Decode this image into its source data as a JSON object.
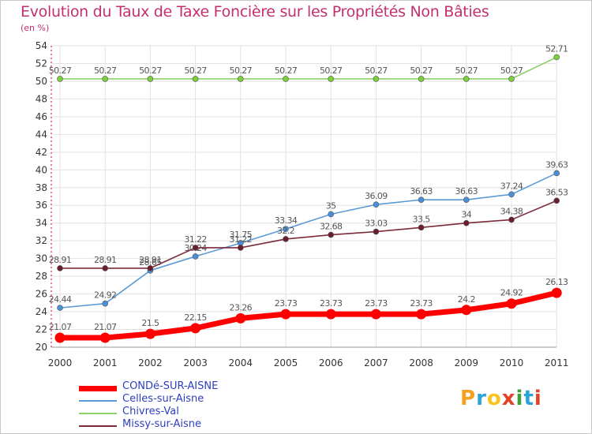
{
  "title": "Evolution du Taux de Taxe Foncière sur les Propriétés Non Bâties",
  "subtitle": "(en %)",
  "logo": "Proxiti",
  "logo_colors": [
    "#f4a020",
    "#2ba3d8",
    "#f7c31c",
    "#e3432b",
    "#3d9f3d",
    "#2ba3d8",
    "#e3432b"
  ],
  "chart_data": {
    "type": "line",
    "title": "Evolution du Taux de Taxe Foncière sur les Propriétés Non Bâties",
    "ylabel": "(en %)",
    "xlabel": "",
    "ylim": [
      20,
      54
    ],
    "yticks": [
      "20",
      "22",
      "24",
      "26",
      "28",
      "30",
      "32",
      "34",
      "36",
      "38",
      "40",
      "42",
      "44",
      "46",
      "48",
      "50",
      "52",
      "54"
    ],
    "categories": [
      "2000",
      "2001",
      "2002",
      "2003",
      "2004",
      "2005",
      "2006",
      "2007",
      "2008",
      "2009",
      "2010",
      "2011"
    ],
    "grid": true,
    "series": [
      {
        "name": "Chivres-Val",
        "color": "#8dd26a",
        "marker": "#7ad13a",
        "values": [
          50.27,
          50.27,
          50.27,
          50.27,
          50.27,
          50.27,
          50.27,
          50.27,
          50.27,
          50.27,
          50.27,
          52.71
        ],
        "labels": [
          "50.27",
          "50.27",
          "50.27",
          "50.27",
          "50.27",
          "50.27",
          "50.27",
          "50.27",
          "50.27",
          "50.27",
          "50.27",
          "52.71"
        ]
      },
      {
        "name": "Celles-sur-Aisne",
        "color": "#5b9bd5",
        "marker": "#4a90d9",
        "values": [
          24.44,
          24.92,
          28.65,
          30.24,
          31.75,
          33.34,
          35,
          36.09,
          36.63,
          36.63,
          37.24,
          39.63
        ],
        "labels": [
          "24.44",
          "24.92",
          "28.65",
          "30.24",
          "31.75",
          "33.34",
          "35",
          "36.09",
          "36.63",
          "36.63",
          "37.24",
          "39.63"
        ]
      },
      {
        "name": "Missy-sur-Aisne",
        "color": "#7b2a3a",
        "marker": "#6b1f2e",
        "values": [
          28.91,
          28.91,
          28.91,
          31.22,
          31.22,
          32.2,
          32.68,
          33.03,
          33.5,
          34,
          34.38,
          36.53
        ],
        "labels": [
          "28.91",
          "28.91",
          "28.91",
          "31.22",
          "31.22",
          "32.2",
          "32.68",
          "33.03",
          "33.5",
          "34",
          "34.38",
          "36.53"
        ]
      },
      {
        "name": "CONDé-SUR-AISNE",
        "color": "#ff0000",
        "marker": "#ff0000",
        "values": [
          21.07,
          21.07,
          21.5,
          22.15,
          23.26,
          23.73,
          23.73,
          23.73,
          23.73,
          24.2,
          24.92,
          26.13
        ],
        "labels": [
          "21.07",
          "21.07",
          "21.5",
          "22.15",
          "23.26",
          "23.73",
          "23.73",
          "23.73",
          "23.73",
          "24.2",
          "24.92",
          "26.13"
        ]
      }
    ],
    "legend": [
      {
        "name": "CONDé-SUR-AISNE",
        "color": "#ff0000"
      },
      {
        "name": "Celles-sur-Aisne",
        "color": "#5b9bd5"
      },
      {
        "name": "Chivres-Val",
        "color": "#8dd26a"
      },
      {
        "name": "Missy-sur-Aisne",
        "color": "#7b2a3a"
      }
    ]
  }
}
